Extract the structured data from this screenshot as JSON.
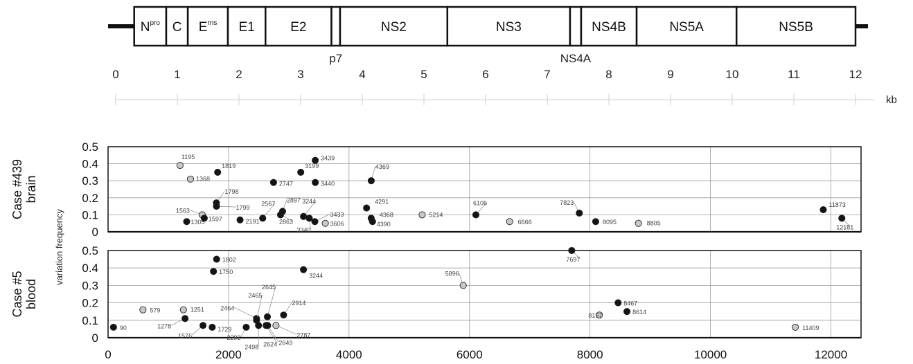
{
  "genome_map": {
    "segments": [
      {
        "label": "N",
        "sup": "pro",
        "start_kb": 0.3,
        "end_kb": 0.82
      },
      {
        "label": "C",
        "sup": "",
        "start_kb": 0.82,
        "end_kb": 1.17
      },
      {
        "label": "E",
        "sup": "rns",
        "start_kb": 1.17,
        "end_kb": 1.82
      },
      {
        "label": "E1",
        "sup": "",
        "start_kb": 1.82,
        "end_kb": 2.43
      },
      {
        "label": "E2",
        "sup": "",
        "start_kb": 2.43,
        "end_kb": 3.5
      },
      {
        "label": "",
        "sup": "",
        "start_kb": 3.5,
        "end_kb": 3.64
      },
      {
        "label": "NS2",
        "sup": "",
        "start_kb": 3.64,
        "end_kb": 5.38
      },
      {
        "label": "NS3",
        "sup": "",
        "start_kb": 5.38,
        "end_kb": 7.37
      },
      {
        "label": "",
        "sup": "",
        "start_kb": 7.37,
        "end_kb": 7.55
      },
      {
        "label": "NS4B",
        "sup": "",
        "start_kb": 7.55,
        "end_kb": 8.45
      },
      {
        "label": "NS5A",
        "sup": "",
        "start_kb": 8.45,
        "end_kb": 10.07
      },
      {
        "label": "NS5B",
        "sup": "",
        "start_kb": 10.07,
        "end_kb": 12.0
      }
    ],
    "below_labels": [
      {
        "text": "p7",
        "at_kb": 3.57
      },
      {
        "text": "NS4A",
        "at_kb": 7.46
      }
    ],
    "kb_ticks": [
      "0",
      "1",
      "2",
      "3",
      "4",
      "5",
      "6",
      "7",
      "8",
      "9",
      "10",
      "11",
      "12"
    ],
    "kb_unit": "kb"
  },
  "y_axis_title": "variation frequency",
  "chart_data": [
    {
      "type": "scatter",
      "panel_label": [
        "Case #439",
        "brain"
      ],
      "xlim": [
        0,
        12500
      ],
      "ylim": [
        0,
        0.5
      ],
      "y_ticks": [
        "0",
        "0.1",
        "0.2",
        "0.3",
        "0.4",
        "0.5"
      ],
      "x_ticks": [],
      "grid": true,
      "points": [
        {
          "x": 1195,
          "y": 0.39,
          "label": "1195",
          "fill": "light"
        },
        {
          "x": 1368,
          "y": 0.31,
          "label": "1368",
          "fill": "light"
        },
        {
          "x": 1305,
          "y": 0.06,
          "label": "1305",
          "fill": "dark"
        },
        {
          "x": 1563,
          "y": 0.1,
          "label": "1563",
          "fill": "light"
        },
        {
          "x": 1597,
          "y": 0.08,
          "label": "1597",
          "fill": "dark"
        },
        {
          "x": 1798,
          "y": 0.17,
          "label": "1798",
          "fill": "dark"
        },
        {
          "x": 1799,
          "y": 0.15,
          "label": "1799",
          "fill": "dark"
        },
        {
          "x": 1819,
          "y": 0.35,
          "label": "1819",
          "fill": "dark"
        },
        {
          "x": 2191,
          "y": 0.07,
          "label": "2191",
          "fill": "dark"
        },
        {
          "x": 2567,
          "y": 0.08,
          "label": "2567",
          "fill": "dark"
        },
        {
          "x": 2747,
          "y": 0.29,
          "label": "2747",
          "fill": "dark"
        },
        {
          "x": 2863,
          "y": 0.1,
          "label": "2863",
          "fill": "dark"
        },
        {
          "x": 2897,
          "y": 0.12,
          "label": "2897",
          "fill": "dark"
        },
        {
          "x": 3199,
          "y": 0.35,
          "label": "3199",
          "fill": "dark"
        },
        {
          "x": 3244,
          "y": 0.09,
          "label": "3244",
          "fill": "dark"
        },
        {
          "x": 3340,
          "y": 0.08,
          "label": "3340",
          "fill": "dark"
        },
        {
          "x": 3433,
          "y": 0.06,
          "label": "3433",
          "fill": "dark"
        },
        {
          "x": 3439,
          "y": 0.42,
          "label": "3439",
          "fill": "dark"
        },
        {
          "x": 3440,
          "y": 0.29,
          "label": "3440",
          "fill": "dark"
        },
        {
          "x": 3606,
          "y": 0.05,
          "label": "3606",
          "fill": "light"
        },
        {
          "x": 4291,
          "y": 0.14,
          "label": "4291",
          "fill": "dark"
        },
        {
          "x": 4368,
          "y": 0.08,
          "label": "4368",
          "fill": "dark"
        },
        {
          "x": 4369,
          "y": 0.3,
          "label": "4369",
          "fill": "dark"
        },
        {
          "x": 4390,
          "y": 0.06,
          "label": "4390",
          "fill": "dark"
        },
        {
          "x": 5214,
          "y": 0.1,
          "label": "5214",
          "fill": "light"
        },
        {
          "x": 6106,
          "y": 0.1,
          "label": "6106",
          "fill": "dark"
        },
        {
          "x": 6666,
          "y": 0.06,
          "label": "6666",
          "fill": "light"
        },
        {
          "x": 7823,
          "y": 0.11,
          "label": "7823",
          "fill": "dark"
        },
        {
          "x": 8095,
          "y": 0.06,
          "label": "8095",
          "fill": "dark"
        },
        {
          "x": 8805,
          "y": 0.05,
          "label": "8805",
          "fill": "light"
        },
        {
          "x": 11873,
          "y": 0.13,
          "label": "11873",
          "fill": "dark"
        },
        {
          "x": 12181,
          "y": 0.08,
          "label": "12181",
          "fill": "dark"
        }
      ]
    },
    {
      "type": "scatter",
      "panel_label": [
        "Case #5",
        "blood"
      ],
      "xlim": [
        0,
        12500
      ],
      "ylim": [
        0,
        0.5
      ],
      "y_ticks": [
        "0",
        "0.1",
        "0.2",
        "0.3",
        "0.4",
        "0.5"
      ],
      "x_ticks": [
        "0",
        "2000",
        "4000",
        "6000",
        "8000",
        "10000",
        "12000"
      ],
      "grid": true,
      "points": [
        {
          "x": 90,
          "y": 0.06,
          "label": "90",
          "fill": "dark"
        },
        {
          "x": 579,
          "y": 0.16,
          "label": "579",
          "fill": "light"
        },
        {
          "x": 1251,
          "y": 0.16,
          "label": "1251",
          "fill": "light"
        },
        {
          "x": 1278,
          "y": 0.11,
          "label": "1278",
          "fill": "dark"
        },
        {
          "x": 1576,
          "y": 0.07,
          "label": "1576",
          "fill": "dark"
        },
        {
          "x": 1729,
          "y": 0.06,
          "label": "1729",
          "fill": "dark"
        },
        {
          "x": 1750,
          "y": 0.38,
          "label": "1750",
          "fill": "dark"
        },
        {
          "x": 1802,
          "y": 0.45,
          "label": "1802",
          "fill": "dark"
        },
        {
          "x": 2293,
          "y": 0.06,
          "label": "2293",
          "fill": "dark"
        },
        {
          "x": 2464,
          "y": 0.11,
          "label": "2464",
          "fill": "dark"
        },
        {
          "x": 2465,
          "y": 0.1,
          "label": "2465",
          "fill": "dark"
        },
        {
          "x": 2498,
          "y": 0.07,
          "label": "2498",
          "fill": "dark"
        },
        {
          "x": 2624,
          "y": 0.07,
          "label": "2624",
          "fill": "dark"
        },
        {
          "x": 2645,
          "y": 0.12,
          "label": "2645",
          "fill": "dark"
        },
        {
          "x": 2649,
          "y": 0.07,
          "label": "2649",
          "fill": "dark"
        },
        {
          "x": 2787,
          "y": 0.07,
          "label": "2787",
          "fill": "light"
        },
        {
          "x": 2914,
          "y": 0.13,
          "label": "2914",
          "fill": "dark"
        },
        {
          "x": 3244,
          "y": 0.39,
          "label": "3244",
          "fill": "dark"
        },
        {
          "x": 5896,
          "y": 0.3,
          "label": "5896",
          "fill": "light"
        },
        {
          "x": 7697,
          "y": 0.5,
          "label": "7697",
          "fill": "dark"
        },
        {
          "x": 8157,
          "y": 0.13,
          "label": "8157",
          "fill": "light"
        },
        {
          "x": 8467,
          "y": 0.2,
          "label": "8467",
          "fill": "dark"
        },
        {
          "x": 8614,
          "y": 0.15,
          "label": "8614",
          "fill": "dark"
        },
        {
          "x": 11409,
          "y": 0.06,
          "label": "11409",
          "fill": "light"
        }
      ]
    }
  ],
  "colors": {
    "dark": "#141414",
    "light": "#c8c8c8",
    "outline": "#222222",
    "grid": "#9a9a9a",
    "label": "#444444",
    "leader": "#888888"
  }
}
